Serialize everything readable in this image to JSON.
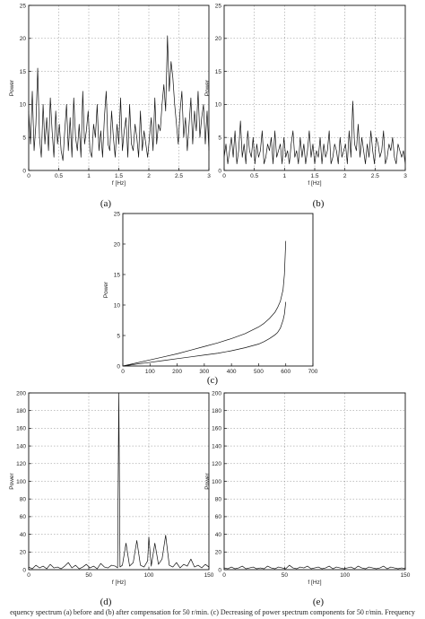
{
  "chart_data": [
    {
      "id": "a",
      "type": "line",
      "panel_label": "(a)",
      "xlabel": "f [Hz]",
      "ylabel": "Power",
      "xlim": [
        0,
        3
      ],
      "ylim": [
        0,
        25
      ],
      "xticks": [
        0,
        0.5,
        1,
        1.5,
        2,
        2.5,
        3
      ],
      "xtick_labels": [
        "0",
        "0.5",
        "1",
        "1.5",
        "2",
        "2.5",
        "3"
      ],
      "yticks": [
        0,
        5,
        10,
        15,
        20,
        25
      ],
      "ytick_labels": [
        "0",
        "5",
        "10",
        "15",
        "20",
        "25"
      ],
      "grid": true,
      "series": [
        {
          "x": [
            0,
            0.03,
            0.06,
            0.09,
            0.12,
            0.15,
            0.18,
            0.21,
            0.24,
            0.27,
            0.3,
            0.33,
            0.36,
            0.39,
            0.42,
            0.45,
            0.48,
            0.51,
            0.54,
            0.57,
            0.6,
            0.63,
            0.66,
            0.69,
            0.72,
            0.75,
            0.78,
            0.81,
            0.84,
            0.87,
            0.9,
            0.93,
            0.96,
            0.99,
            1.02,
            1.05,
            1.08,
            1.11,
            1.14,
            1.17,
            1.2,
            1.23,
            1.26,
            1.29,
            1.32,
            1.35,
            1.38,
            1.41,
            1.44,
            1.47,
            1.5,
            1.53,
            1.56,
            1.59,
            1.62,
            1.65,
            1.68,
            1.71,
            1.74,
            1.77,
            1.8,
            1.83,
            1.86,
            1.89,
            1.92,
            1.95,
            1.98,
            2.01,
            2.04,
            2.07,
            2.1,
            2.13,
            2.16,
            2.19,
            2.22,
            2.25,
            2.28,
            2.31,
            2.34,
            2.37,
            2.4,
            2.43,
            2.46,
            2.49,
            2.52,
            2.55,
            2.58,
            2.61,
            2.64,
            2.67,
            2.7,
            2.73,
            2.76,
            2.79,
            2.82,
            2.85,
            2.88,
            2.91,
            2.94,
            2.97,
            3.0
          ],
          "values": [
            9,
            4,
            12,
            3,
            7,
            15.5,
            5,
            2,
            10,
            4,
            8,
            3,
            11,
            6,
            2,
            9,
            4,
            7,
            3,
            1.5,
            6,
            10,
            3,
            8,
            2,
            11,
            5,
            3,
            7,
            2,
            12,
            4,
            6,
            9,
            3,
            2,
            7,
            5,
            10,
            3,
            6,
            2,
            8,
            12,
            4,
            3,
            9,
            5,
            2,
            7,
            4,
            11,
            3,
            6,
            8,
            2,
            10,
            4,
            3,
            7,
            5,
            2,
            9,
            3,
            6,
            4,
            2,
            5,
            8,
            3,
            11,
            4,
            7,
            6,
            10,
            13,
            9,
            20.4,
            12,
            16.5,
            14,
            10,
            7,
            4,
            9,
            12,
            5,
            8,
            3,
            7,
            11,
            4,
            9,
            6,
            12,
            5,
            8,
            10,
            4,
            9,
            3
          ]
        }
      ]
    },
    {
      "id": "b",
      "type": "line",
      "panel_label": "(b)",
      "xlabel": "f [Hz]",
      "ylabel": "Power",
      "xlim": [
        0,
        3
      ],
      "ylim": [
        0,
        25
      ],
      "xticks": [
        0,
        0.5,
        1,
        1.5,
        2,
        2.5,
        3
      ],
      "xtick_labels": [
        "0",
        "0.5",
        "1",
        "1.5",
        "2",
        "2.5",
        "3"
      ],
      "yticks": [
        0,
        5,
        10,
        15,
        20,
        25
      ],
      "ytick_labels": [
        "0",
        "5",
        "10",
        "15",
        "20",
        "25"
      ],
      "grid": true,
      "series": [
        {
          "x": [
            0,
            0.03,
            0.06,
            0.09,
            0.12,
            0.15,
            0.18,
            0.21,
            0.24,
            0.27,
            0.3,
            0.33,
            0.36,
            0.39,
            0.42,
            0.45,
            0.48,
            0.51,
            0.54,
            0.57,
            0.6,
            0.63,
            0.66,
            0.69,
            0.72,
            0.75,
            0.78,
            0.81,
            0.84,
            0.87,
            0.9,
            0.93,
            0.96,
            0.99,
            1.02,
            1.05,
            1.08,
            1.11,
            1.14,
            1.17,
            1.2,
            1.23,
            1.26,
            1.29,
            1.32,
            1.35,
            1.38,
            1.41,
            1.44,
            1.47,
            1.5,
            1.53,
            1.56,
            1.59,
            1.62,
            1.65,
            1.68,
            1.71,
            1.74,
            1.77,
            1.8,
            1.83,
            1.86,
            1.89,
            1.92,
            1.95,
            1.98,
            2.01,
            2.04,
            2.07,
            2.1,
            2.13,
            2.16,
            2.19,
            2.22,
            2.25,
            2.28,
            2.31,
            2.34,
            2.37,
            2.4,
            2.43,
            2.46,
            2.49,
            2.52,
            2.55,
            2.58,
            2.61,
            2.64,
            2.67,
            2.7,
            2.73,
            2.76,
            2.79,
            2.82,
            2.85,
            2.88,
            2.91,
            2.94,
            2.97,
            3.0
          ],
          "values": [
            2,
            4,
            1,
            3,
            5,
            2,
            6,
            1,
            3,
            7.5,
            2,
            4,
            1,
            6,
            3,
            2,
            5,
            1,
            4,
            2,
            3,
            6,
            1,
            2,
            4,
            3,
            5,
            1,
            6,
            2,
            3,
            4,
            1,
            5,
            2,
            3,
            1,
            4,
            6,
            2,
            3,
            1,
            5,
            2,
            4,
            1,
            3,
            6,
            2,
            4,
            1,
            3,
            2,
            5,
            1,
            4,
            2,
            3,
            6,
            1,
            2,
            4,
            3,
            1,
            5,
            2,
            3,
            4,
            1,
            6,
            2,
            10.5,
            4,
            3,
            7,
            2,
            5,
            3,
            1,
            4,
            2,
            6,
            3,
            1,
            5,
            4,
            2,
            3,
            6,
            1,
            2,
            4,
            3,
            5,
            2,
            1,
            4,
            3,
            2,
            3,
            1
          ]
        }
      ]
    },
    {
      "id": "c",
      "type": "line",
      "panel_label": "(c)",
      "xlabel": "",
      "ylabel": "Power",
      "xlim": [
        0,
        700
      ],
      "ylim": [
        0,
        25
      ],
      "xticks": [
        0,
        100,
        200,
        300,
        400,
        500,
        600,
        700
      ],
      "xtick_labels": [
        "0",
        "100",
        "200",
        "300",
        "400",
        "500",
        "600",
        "700"
      ],
      "yticks": [
        0,
        5,
        10,
        15,
        20,
        25
      ],
      "ytick_labels": [
        "0",
        "5",
        "10",
        "15",
        "20",
        "25"
      ],
      "grid": false,
      "series": [
        {
          "x": [
            0,
            50,
            100,
            150,
            200,
            250,
            300,
            350,
            400,
            450,
            500,
            520,
            540,
            560,
            570,
            580,
            590,
            595,
            600
          ],
          "values": [
            0,
            0.5,
            1,
            1.5,
            2,
            2.6,
            3.2,
            3.8,
            4.5,
            5.3,
            6.4,
            7,
            7.8,
            8.8,
            9.6,
            10.6,
            12.5,
            15,
            20.5
          ]
        },
        {
          "x": [
            0,
            50,
            100,
            150,
            200,
            250,
            300,
            350,
            400,
            450,
            500,
            520,
            540,
            560,
            570,
            580,
            590,
            595,
            600
          ],
          "values": [
            0,
            0.3,
            0.6,
            0.9,
            1.2,
            1.5,
            1.8,
            2.1,
            2.5,
            3,
            3.6,
            4,
            4.5,
            5.1,
            5.5,
            6.2,
            7.5,
            8.5,
            10.5
          ]
        }
      ]
    },
    {
      "id": "d",
      "type": "line",
      "panel_label": "(d)",
      "xlabel": "f [Hz]",
      "ylabel": "Power",
      "xlim": [
        0,
        150
      ],
      "ylim": [
        0,
        200
      ],
      "xticks": [
        0,
        50,
        100,
        150
      ],
      "xtick_labels": [
        "0",
        "50",
        "100",
        "150"
      ],
      "yticks": [
        0,
        20,
        40,
        60,
        80,
        100,
        120,
        140,
        160,
        180,
        200
      ],
      "ytick_labels": [
        "0",
        "20",
        "40",
        "60",
        "80",
        "100",
        "120",
        "140",
        "160",
        "180",
        "200"
      ],
      "grid": true,
      "series": [
        {
          "x": [
            0,
            3,
            6,
            9,
            12,
            15,
            18,
            21,
            24,
            27,
            30,
            33,
            36,
            39,
            42,
            45,
            48,
            51,
            54,
            57,
            60,
            63,
            66,
            69,
            72,
            74,
            75,
            76,
            78,
            81,
            84,
            87,
            90,
            93,
            96,
            99,
            100,
            102,
            105,
            108,
            111,
            114,
            117,
            120,
            123,
            126,
            129,
            132,
            135,
            138,
            141,
            144,
            147,
            150
          ],
          "values": [
            3,
            1,
            5,
            2,
            4,
            1,
            6,
            2,
            3,
            1,
            4,
            8,
            2,
            5,
            1,
            3,
            6,
            2,
            4,
            1,
            7,
            3,
            2,
            5,
            4,
            2,
            200,
            3,
            5,
            30,
            4,
            8,
            33,
            5,
            3,
            10,
            37,
            4,
            30,
            6,
            12,
            39,
            5,
            3,
            8,
            2,
            6,
            4,
            12,
            3,
            5,
            2,
            6,
            3
          ]
        }
      ]
    },
    {
      "id": "e",
      "type": "line",
      "panel_label": "(e)",
      "xlabel": "f [Hz]",
      "ylabel": "Power",
      "xlim": [
        0,
        150
      ],
      "ylim": [
        0,
        200
      ],
      "xticks": [
        0,
        50,
        100,
        150
      ],
      "xtick_labels": [
        "0",
        "50",
        "100",
        "150"
      ],
      "yticks": [
        0,
        20,
        40,
        60,
        80,
        100,
        120,
        140,
        160,
        180,
        200
      ],
      "ytick_labels": [
        "0",
        "20",
        "40",
        "60",
        "80",
        "100",
        "120",
        "140",
        "160",
        "180",
        "200"
      ],
      "grid": true,
      "series": [
        {
          "x": [
            0,
            3,
            6,
            9,
            12,
            15,
            18,
            21,
            24,
            27,
            30,
            33,
            36,
            39,
            42,
            45,
            48,
            51,
            54,
            57,
            60,
            63,
            66,
            69,
            72,
            75,
            78,
            81,
            84,
            87,
            90,
            93,
            96,
            99,
            102,
            105,
            108,
            111,
            114,
            117,
            120,
            123,
            126,
            129,
            132,
            135,
            138,
            141,
            144,
            147,
            150
          ],
          "values": [
            2,
            1,
            3,
            1,
            2,
            4,
            1,
            2,
            3,
            1,
            2,
            1,
            4,
            2,
            1,
            3,
            2,
            1,
            5,
            2,
            1,
            3,
            2,
            4,
            1,
            2,
            3,
            1,
            2,
            4,
            1,
            3,
            2,
            1,
            2,
            3,
            1,
            4,
            2,
            1,
            3,
            2,
            1,
            2,
            4,
            1,
            3,
            2,
            1,
            2,
            1
          ]
        }
      ]
    }
  ],
  "caption": "equency spectrum (a) before and (b) after compensation for 50 r/min. (c) Decreasing of power spectrum components for 50 r/min. Frequency"
}
